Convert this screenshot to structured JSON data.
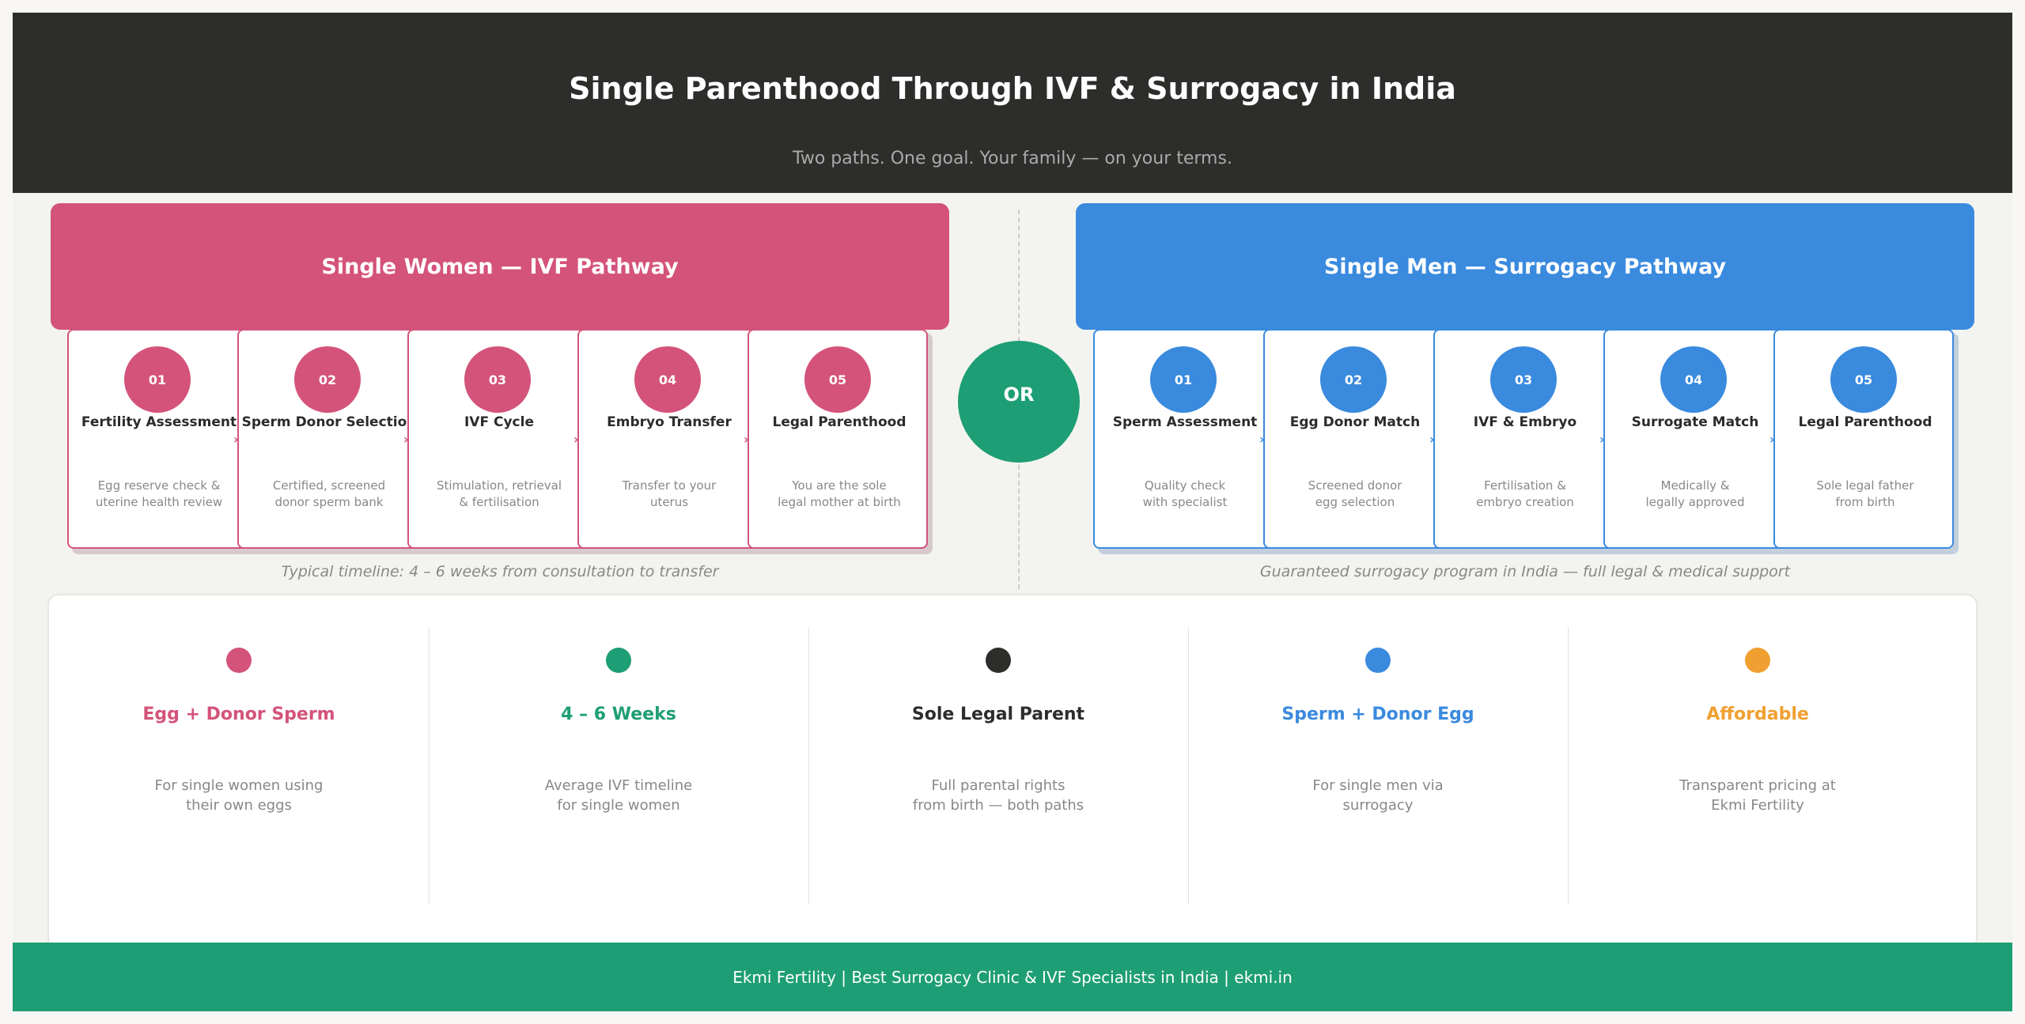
{
  "header": {
    "title": "Single Parenthood Through IVF & Surrogacy in India",
    "subtitle": "Two paths. One goal. Your family — on your terms."
  },
  "colors": {
    "pink": "#d4537b",
    "blue": "#3a8ade",
    "green": "#1e9e74",
    "dark": "#2d2d2b",
    "orange": "#f0a030"
  },
  "women": {
    "banner": "Single Women  —  IVF Pathway",
    "timeline": "Typical timeline: 4 – 6 weeks from consultation to transfer",
    "steps": [
      {
        "num": "01",
        "title": "Fertility Assessment",
        "desc": "Egg reserve check &\nuterine health review"
      },
      {
        "num": "02",
        "title": "Sperm Donor Selection",
        "desc": "Certified, screened\ndonor sperm bank"
      },
      {
        "num": "03",
        "title": "IVF Cycle",
        "desc": "Stimulation, retrieval\n& fertilisation"
      },
      {
        "num": "04",
        "title": "Embryo Transfer",
        "desc": "Transfer to your\nuterus"
      },
      {
        "num": "05",
        "title": "Legal Parenthood",
        "desc": "You are the sole\nlegal mother at birth"
      }
    ]
  },
  "or_label": "OR",
  "men": {
    "banner": "Single Men  —  Surrogacy Pathway",
    "timeline": "Guaranteed surrogacy program in India — full legal & medical support",
    "steps": [
      {
        "num": "01",
        "title": "Sperm Assessment",
        "desc": "Quality check\nwith specialist"
      },
      {
        "num": "02",
        "title": "Egg Donor Match",
        "desc": "Screened donor\negg selection"
      },
      {
        "num": "03",
        "title": "IVF & Embryo",
        "desc": "Fertilisation &\nembryo creation"
      },
      {
        "num": "04",
        "title": "Surrogate Match",
        "desc": "Medically &\nlegally approved"
      },
      {
        "num": "05",
        "title": "Legal Parenthood",
        "desc": "Sole legal father\nfrom birth"
      }
    ]
  },
  "summary": [
    {
      "title": "Egg + Donor Sperm",
      "desc": "For single women using\ntheir own eggs",
      "color": "#d4537b"
    },
    {
      "title": "4 – 6 Weeks",
      "desc": "Average IVF timeline\nfor single women",
      "color": "#1e9e74"
    },
    {
      "title": "Sole Legal Parent",
      "desc": "Full parental rights\nfrom birth — both paths",
      "color": "#2d2d2b"
    },
    {
      "title": "Sperm + Donor Egg",
      "desc": "For single men via\nsurrogacy",
      "color": "#3a8ade"
    },
    {
      "title": "Affordable",
      "desc": "Transparent pricing at\nEkmi Fertility",
      "color": "#f0a030"
    }
  ],
  "footer": "Ekmi Fertility  |  Best Surrogacy Clinic & IVF Specialists in India  |  ekmi.in"
}
